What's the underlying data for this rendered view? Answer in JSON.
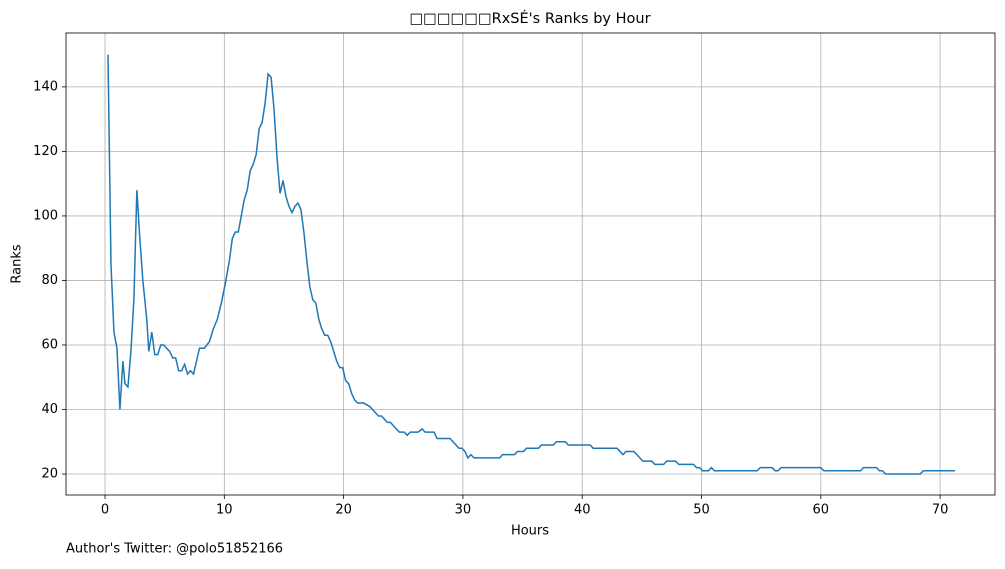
{
  "chart_data": {
    "type": "line",
    "title": "□□□□□□RxSÉ's Ranks by Hour",
    "xlabel": "Hours",
    "ylabel": "Ranks",
    "annotation": "Author's Twitter: @polo51852166",
    "x": [
      0.25,
      0.5,
      0.75,
      1.0,
      1.25,
      1.5,
      1.67,
      1.92,
      2.17,
      2.42,
      2.67,
      2.92,
      3.17,
      3.5,
      3.67,
      3.92,
      4.17,
      4.42,
      4.67,
      4.92,
      5.17,
      5.42,
      5.67,
      5.92,
      6.17,
      6.42,
      6.67,
      6.92,
      7.17,
      7.42,
      7.67,
      7.92,
      8.33,
      8.75,
      9.08,
      9.42,
      9.75,
      10.08,
      10.42,
      10.67,
      10.92,
      11.17,
      11.42,
      11.67,
      11.92,
      12.17,
      12.42,
      12.67,
      12.92,
      13.17,
      13.42,
      13.67,
      13.92,
      14.17,
      14.42,
      14.67,
      14.92,
      15.17,
      15.42,
      15.67,
      15.92,
      16.17,
      16.42,
      16.67,
      16.92,
      17.17,
      17.42,
      17.67,
      17.92,
      18.17,
      18.42,
      18.67,
      18.92,
      19.17,
      19.42,
      19.67,
      19.92,
      20.17,
      20.42,
      20.67,
      20.92,
      21.17,
      21.67,
      22.17,
      22.67,
      22.92,
      23.17,
      23.42,
      23.67,
      23.92,
      24.17,
      24.42,
      24.67,
      25.08,
      25.33,
      25.58,
      26.25,
      26.58,
      26.83,
      27.58,
      27.83,
      28.92,
      29.17,
      29.42,
      29.67,
      29.92,
      30.17,
      30.42,
      30.67,
      30.92,
      33.08,
      33.33,
      34.33,
      34.58,
      35.08,
      35.33,
      36.33,
      36.58,
      37.58,
      37.83,
      38.58,
      38.83,
      40.67,
      40.92,
      42.92,
      43.17,
      43.42,
      43.67,
      44.33,
      44.58,
      44.83,
      45.08,
      45.83,
      46.08,
      46.83,
      47.08,
      47.83,
      48.08,
      49.33,
      49.58,
      49.83,
      50.08,
      50.58,
      50.83,
      51.08,
      54.67,
      54.92,
      55.92,
      56.17,
      56.42,
      56.67,
      60.0,
      60.25,
      63.33,
      63.58,
      64.67,
      64.92,
      65.17,
      65.42,
      68.33,
      68.58,
      71.25
    ],
    "series": [
      {
        "name": "Ranks",
        "color": "#1f77b4",
        "values": [
          150,
          85,
          64,
          59,
          40,
          55,
          48,
          47,
          58,
          74,
          108,
          93,
          80,
          68,
          58,
          64,
          57,
          57,
          60,
          60,
          59,
          58,
          56,
          56,
          52,
          52,
          54,
          51,
          52,
          51,
          55,
          59,
          59,
          61,
          65,
          68,
          73,
          79,
          86,
          93,
          95,
          95,
          100,
          105,
          108,
          114,
          116,
          119,
          127,
          129,
          135,
          144,
          143,
          133,
          118,
          107,
          111,
          106,
          103,
          101,
          103,
          104,
          102,
          95,
          86,
          78,
          74,
          73,
          68,
          65,
          63,
          63,
          61,
          58,
          55,
          53,
          53,
          49,
          48,
          45,
          43,
          42,
          42,
          41,
          39,
          38,
          38,
          37,
          36,
          36,
          35,
          34,
          33,
          33,
          32,
          33,
          33,
          34,
          33,
          33,
          31,
          31,
          30,
          29,
          28,
          28,
          27,
          25,
          26,
          25,
          25,
          26,
          26,
          27,
          27,
          28,
          28,
          29,
          29,
          30,
          30,
          29,
          29,
          28,
          28,
          27,
          26,
          27,
          27,
          26,
          25,
          24,
          24,
          23,
          23,
          24,
          24,
          23,
          23,
          22,
          22,
          21,
          21,
          22,
          21,
          21,
          22,
          22,
          21,
          21,
          22,
          22,
          21,
          21,
          22,
          22,
          21,
          21,
          20,
          20,
          21,
          21
        ]
      }
    ],
    "xlim": [
      -3.27,
      74.6
    ],
    "ylim": [
      13.5,
      156.7
    ],
    "xticks": [
      0,
      10,
      20,
      30,
      40,
      50,
      60,
      70
    ],
    "yticks": [
      20,
      40,
      60,
      80,
      100,
      120,
      140
    ],
    "grid": true
  }
}
